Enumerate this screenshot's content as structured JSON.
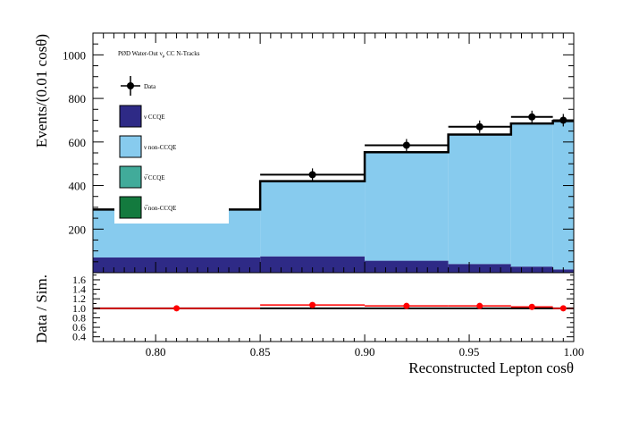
{
  "chart_data": [
    {
      "type": "bar",
      "panel": "top",
      "ylabel": "Events/(0.01 cosθ)",
      "xlim": [
        0.77,
        1.0
      ],
      "ylim": [
        0,
        1100
      ],
      "y_ticks": [
        "200",
        "400",
        "600",
        "800",
        "1000"
      ],
      "legend_title": "PØD Water-Out νμ CC N-Tracks",
      "legend_title_parts": {
        "pre": "PØD Water-Out ν",
        "sub": "μ",
        "post": " CC N-Tracks"
      },
      "legend_position": "top-left",
      "bin_edges": [
        0.77,
        0.85,
        0.9,
        0.94,
        0.97,
        0.99,
        1.0
      ],
      "series": [
        {
          "name": "ν CCQE",
          "color": "#2e2a86",
          "values": [
            70,
            75,
            55,
            40,
            28,
            15
          ]
        },
        {
          "name": "ν non-CCQE",
          "color": "#87cbee",
          "values": [
            220,
            345,
            498,
            594,
            657,
            681
          ]
        },
        {
          "name": "ν̅ CCQE",
          "color": "#41ab9a",
          "values": [
            0,
            0,
            0,
            0,
            0,
            0
          ]
        },
        {
          "name": "ν̅ non-CCQE",
          "color": "#137a3e",
          "values": [
            0,
            0,
            0,
            0,
            0,
            0
          ]
        }
      ],
      "legend": [
        {
          "label": "Data",
          "kind": "marker"
        },
        {
          "label": "ν CCQE",
          "kind": "box",
          "color": "#2e2a86"
        },
        {
          "label": "ν non-CCQE",
          "kind": "box",
          "color": "#87cbee"
        },
        {
          "label": "ν̅ CCQE",
          "kind": "box",
          "color": "#41ab9a"
        },
        {
          "label": "ν̅ non-CCQE",
          "kind": "box",
          "color": "#137a3e"
        }
      ],
      "data_points": [
        {
          "x": 0.81,
          "y": 290,
          "x_err": [
            0.77,
            0.85
          ]
        },
        {
          "x": 0.875,
          "y": 450,
          "x_err": [
            0.85,
            0.9
          ]
        },
        {
          "x": 0.92,
          "y": 585,
          "x_err": [
            0.9,
            0.94
          ]
        },
        {
          "x": 0.955,
          "y": 670,
          "x_err": [
            0.94,
            0.97
          ]
        },
        {
          "x": 0.98,
          "y": 715,
          "x_err": [
            0.97,
            0.99
          ]
        },
        {
          "x": 0.995,
          "y": 700,
          "x_err": [
            0.99,
            1.0
          ]
        }
      ]
    },
    {
      "type": "scatter",
      "panel": "bottom",
      "xlabel": "Reconstructed Lepton cosθ",
      "ylabel": "Data / Sim.",
      "xlim": [
        0.77,
        1.0
      ],
      "ylim": [
        0.3,
        1.75
      ],
      "x_ticks": [
        "0.80",
        "0.85",
        "0.90",
        "0.95",
        "1.00"
      ],
      "y_ticks": [
        "0.4",
        "0.6",
        "0.8",
        "1.0",
        "1.2",
        "1.4",
        "1.6"
      ],
      "reference_line": 1.0,
      "series": [
        {
          "color": "#ff0000",
          "points": [
            {
              "x": 0.81,
              "y": 1.0,
              "x_err": [
                0.77,
                0.85
              ]
            },
            {
              "x": 0.875,
              "y": 1.07,
              "x_err": [
                0.85,
                0.9
              ]
            },
            {
              "x": 0.92,
              "y": 1.05,
              "x_err": [
                0.9,
                0.94
              ]
            },
            {
              "x": 0.955,
              "y": 1.05,
              "x_err": [
                0.94,
                0.97
              ]
            },
            {
              "x": 0.98,
              "y": 1.03,
              "x_err": [
                0.97,
                0.99
              ]
            },
            {
              "x": 0.995,
              "y": 1.0,
              "x_err": [
                0.99,
                1.0
              ]
            }
          ]
        }
      ]
    }
  ]
}
